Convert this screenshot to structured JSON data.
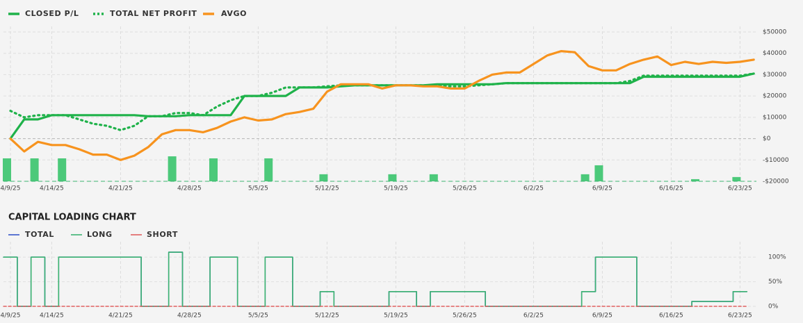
{
  "chart_data": [
    {
      "type": "line",
      "categories": [
        "4/9/25",
        null,
        null,
        "4/14/25",
        null,
        null,
        null,
        null,
        "4/21/25",
        null,
        null,
        null,
        null,
        "4/28/25",
        null,
        null,
        null,
        null,
        "5/5/25",
        null,
        null,
        null,
        null,
        "5/12/25",
        null,
        null,
        null,
        null,
        "5/19/25",
        null,
        null,
        null,
        null,
        "5/26/25",
        null,
        null,
        null,
        null,
        "6/2/25",
        null,
        null,
        null,
        null,
        "6/9/25",
        null,
        null,
        null,
        null,
        "6/16/25",
        null,
        null,
        null,
        null,
        "6/23/25",
        null
      ],
      "ylim": [
        -20000,
        50000
      ],
      "yticks": [
        {
          "value": 50000,
          "label": "$50000"
        },
        {
          "value": 40000,
          "label": "$40000"
        },
        {
          "value": 30000,
          "label": "$30000"
        },
        {
          "value": 20000,
          "label": "$20000"
        },
        {
          "value": 10000,
          "label": "$10000"
        },
        {
          "value": 0,
          "label": "$0"
        },
        {
          "value": -10000,
          "label": "-$10000"
        },
        {
          "value": -20000,
          "label": "-$20000"
        }
      ],
      "grid": true,
      "series": [
        {
          "name": "CLOSED P/L",
          "color": "#1fb24a",
          "style": "solid",
          "values": [
            0,
            9000,
            9000,
            11000,
            11000,
            11000,
            11000,
            11000,
            11000,
            11000,
            10500,
            10500,
            10500,
            11000,
            11000,
            11000,
            11000,
            20000,
            20000,
            20000,
            20000,
            24000,
            24000,
            24000,
            24500,
            25000,
            25000,
            25000,
            25000,
            25000,
            25000,
            25500,
            25500,
            25500,
            25500,
            25500,
            26000,
            26000,
            26000,
            26000,
            26000,
            26000,
            26000,
            26000,
            26000,
            26000,
            29000,
            29000,
            29000,
            29000,
            29000,
            29000,
            29000,
            29000,
            30500
          ]
        },
        {
          "name": "TOTAL NET PROFIT",
          "color": "#1fb24a",
          "style": "dotted",
          "values": [
            13000,
            10000,
            11000,
            11000,
            11000,
            9000,
            7000,
            6000,
            4000,
            6000,
            10500,
            10500,
            12000,
            12000,
            11000,
            15000,
            18000,
            20000,
            20000,
            21500,
            24000,
            24000,
            24000,
            24500,
            25000,
            25000,
            25000,
            25000,
            25000,
            25000,
            25000,
            25000,
            24500,
            24500,
            25000,
            25500,
            26000,
            26000,
            26000,
            26000,
            26000,
            26000,
            26000,
            26000,
            26000,
            27000,
            29500,
            29500,
            29500,
            29500,
            29500,
            29500,
            29500,
            29500,
            30500
          ]
        },
        {
          "name": "AVGO",
          "color": "#f7931e",
          "style": "solid",
          "values": [
            0,
            -6000,
            -1500,
            -3000,
            -3000,
            -5000,
            -7500,
            -7500,
            -10000,
            -8000,
            -4000,
            2000,
            4000,
            4000,
            3000,
            5000,
            8000,
            10000,
            8500,
            9000,
            11500,
            12500,
            14000,
            22000,
            25500,
            25500,
            25500,
            23500,
            25000,
            25000,
            24500,
            24500,
            23500,
            23500,
            27000,
            30000,
            31000,
            31000,
            35000,
            39000,
            41000,
            40500,
            34000,
            32000,
            32000,
            35000,
            37000,
            38500,
            34500,
            36000,
            35000,
            36000,
            35500,
            36000,
            37000
          ]
        }
      ],
      "bars": {
        "color": "#4cc97a",
        "values": [
          -9250,
          null,
          -9250,
          null,
          -9250,
          null,
          null,
          null,
          null,
          null,
          null,
          null,
          -8300,
          null,
          null,
          -9250,
          null,
          null,
          null,
          -9250,
          null,
          null,
          null,
          -16700,
          null,
          null,
          null,
          null,
          -16700,
          null,
          null,
          -16700,
          null,
          null,
          null,
          null,
          null,
          null,
          null,
          null,
          null,
          null,
          -16700,
          -12500,
          null,
          null,
          null,
          null,
          null,
          null,
          -19000,
          null,
          null,
          -18000,
          null
        ]
      }
    },
    {
      "type": "step",
      "title": "CAPITAL LOADING CHART",
      "categories": [
        "4/9/25",
        null,
        null,
        "4/14/25",
        null,
        null,
        null,
        null,
        "4/21/25",
        null,
        null,
        null,
        null,
        "4/28/25",
        null,
        null,
        null,
        null,
        "5/5/25",
        null,
        null,
        null,
        null,
        "5/12/25",
        null,
        null,
        null,
        null,
        "5/19/25",
        null,
        null,
        null,
        null,
        "5/26/25",
        null,
        null,
        null,
        null,
        "6/2/25",
        null,
        null,
        null,
        null,
        "6/9/25",
        null,
        null,
        null,
        null,
        "6/16/25",
        null,
        null,
        null,
        null,
        "6/23/25",
        null
      ],
      "ylim": [
        0,
        120
      ],
      "yticks": [
        {
          "value": 100,
          "label": "100%"
        },
        {
          "value": 50,
          "label": "50%"
        },
        {
          "value": 0,
          "label": "0%"
        }
      ],
      "grid": true,
      "series": [
        {
          "name": "TOTAL",
          "color": "#3557c9",
          "style": "solid",
          "values": [
            100,
            0,
            100,
            0,
            100,
            100,
            100,
            100,
            100,
            100,
            0,
            0,
            110,
            0,
            0,
            100,
            100,
            0,
            0,
            100,
            100,
            0,
            0,
            30,
            0,
            0,
            0,
            0,
            30,
            30,
            0,
            30,
            30,
            30,
            30,
            0,
            0,
            0,
            0,
            0,
            0,
            0,
            30,
            100,
            100,
            100,
            0,
            0,
            0,
            0,
            10,
            10,
            10,
            30,
            null
          ]
        },
        {
          "name": "LONG",
          "color": "#3cb371",
          "style": "solid",
          "values": [
            100,
            0,
            100,
            0,
            100,
            100,
            100,
            100,
            100,
            100,
            0,
            0,
            110,
            0,
            0,
            100,
            100,
            0,
            0,
            100,
            100,
            0,
            0,
            30,
            0,
            0,
            0,
            0,
            30,
            30,
            0,
            30,
            30,
            30,
            30,
            0,
            0,
            0,
            0,
            0,
            0,
            0,
            30,
            100,
            100,
            100,
            0,
            0,
            0,
            0,
            10,
            10,
            10,
            30,
            null
          ]
        },
        {
          "name": "SHORT",
          "color": "#e06060",
          "style": "dashed",
          "values": [
            0,
            0,
            0,
            0,
            0,
            0,
            0,
            0,
            0,
            0,
            0,
            0,
            0,
            0,
            0,
            0,
            0,
            0,
            0,
            0,
            0,
            0,
            0,
            0,
            0,
            0,
            0,
            0,
            0,
            0,
            0,
            0,
            0,
            0,
            0,
            0,
            0,
            0,
            0,
            0,
            0,
            0,
            0,
            0,
            0,
            0,
            0,
            0,
            0,
            0,
            0,
            0,
            0,
            0,
            null
          ]
        }
      ]
    }
  ]
}
